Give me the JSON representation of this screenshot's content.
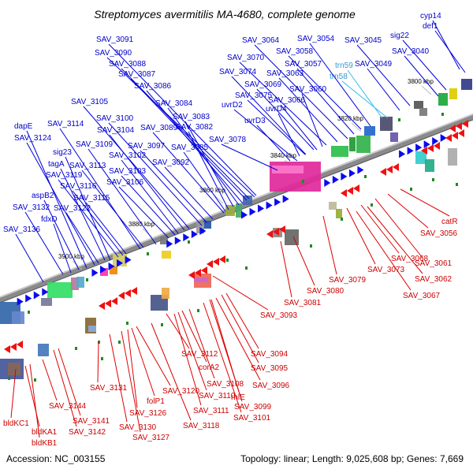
{
  "title": "Streptomyces avermitilis MA-4680, complete genome",
  "footer": {
    "accession": "Accession: NC_003155",
    "summary": "Topology: linear; Length: 9,025,608 bp; Genes: 7,669"
  },
  "colors": {
    "forward_label": "#0000cc",
    "reverse_label": "#cc0000",
    "trna_label": "#3399cc",
    "forward_arrow": "#0a0af0",
    "reverse_arrow": "#ee1111",
    "backbone": "#888888"
  },
  "ruler": [
    "3800 kbp",
    "3820 kbp",
    "3840 kbp",
    "3860 kbp",
    "3880 kbp",
    "3900 kbp"
  ],
  "forward_genes": [
    "cyp14",
    "def1",
    "sig22",
    "SAV_3040",
    "SAV_3045",
    "SAV_3049",
    "trn58",
    "trn59",
    "SAV_3054",
    "SAV_3058",
    "SAV_3057",
    "SAV_3064",
    "SAV_3063",
    "SAV_3060",
    "SAV_3070",
    "SAV_3069",
    "SAV_3066",
    "SAV_3074",
    "SAV_3075",
    "uvrD4",
    "uvrD2",
    "uvrD3",
    "SAV_3078",
    "SAV_3082",
    "SAV_3083",
    "SAV_3084",
    "SAV_3085",
    "SAV_3086",
    "SAV_3087",
    "SAV_3088",
    "SAV_3089",
    "SAV_3090",
    "SAV_3091",
    "SAV_3092",
    "SAV_3097",
    "SAV_3100",
    "SAV_3102",
    "SAV_3103",
    "SAV_3104",
    "SAV_3105",
    "SAV_3106",
    "SAV_3109",
    "SAV_3113",
    "SAV_3114",
    "SAV_3115",
    "SAV_3116",
    "SAV_3119",
    "SAV_3122",
    "SAV_3124",
    "SAV_3132",
    "SAV_3136",
    "dapE",
    "sig23",
    "tagA",
    "aspB2",
    "fdxD"
  ],
  "reverse_genes": [
    "catR",
    "SAV_3056",
    "SAV_3061",
    "SAV_3062",
    "SAV_3067",
    "SAV_3068",
    "SAV_3073",
    "SAV_3079",
    "SAV_3080",
    "SAV_3081",
    "SAV_3093",
    "SAV_3094",
    "SAV_3095",
    "SAV_3096",
    "SAV_3099",
    "SAV_3101",
    "rhlE",
    "SAV_3108",
    "SAV_3110",
    "SAV_3111",
    "corA2",
    "SAV_3112",
    "SAV_3118",
    "SAV_3120",
    "folP1",
    "SAV_3126",
    "SAV_3127",
    "SAV_3130",
    "SAV_3131",
    "SAV_3141",
    "SAV_3142",
    "SAV_3144",
    "bldKB1",
    "bldKA1",
    "bldKC1"
  ]
}
